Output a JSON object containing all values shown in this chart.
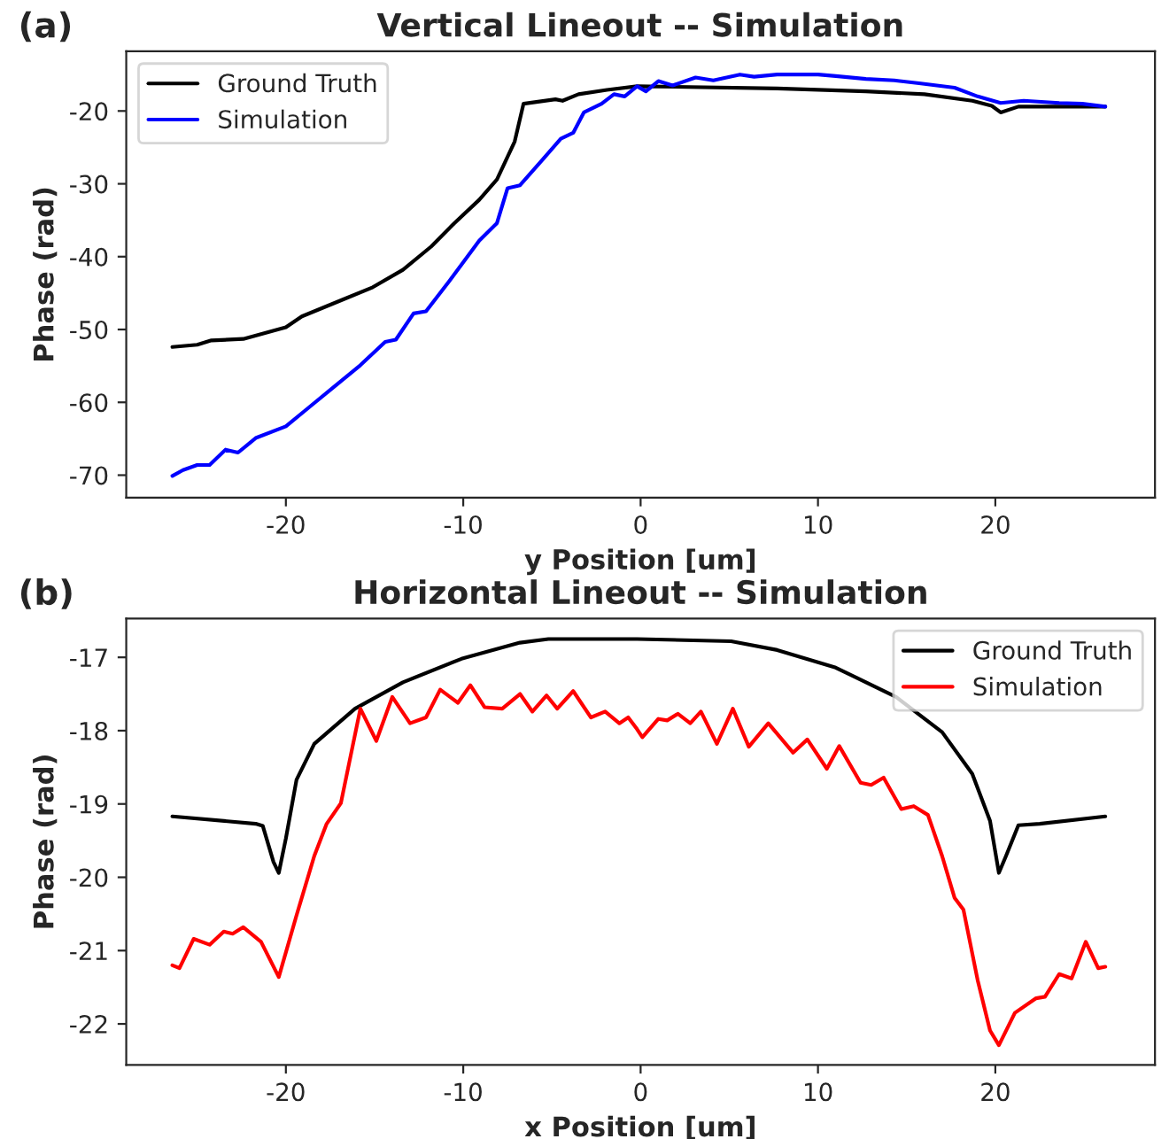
{
  "chart_data": [
    {
      "type": "line",
      "title": "Vertical Lineout -- Simulation",
      "xlabel": "y Position [um]",
      "ylabel": "Phase (rad)",
      "annotations": [
        "(a)"
      ],
      "legend": "top left",
      "grid": false,
      "xlim": [
        -29,
        29
      ],
      "xticks": [
        -20,
        -10,
        0,
        10,
        20
      ],
      "ylim": [
        -73.1,
        -11.8
      ],
      "yticks": [
        -70,
        -60,
        -50,
        -40,
        -30,
        -20
      ],
      "series": [
        {
          "name": "Ground Truth",
          "color": "#000000",
          "x": [
            -26.4,
            -25.0,
            -24.2,
            -22.4,
            -20.0,
            -19.1,
            -16.7,
            -15.1,
            -13.4,
            -11.8,
            -10.5,
            -9.1,
            -8.1,
            -7.1,
            -6.6,
            -4.8,
            -4.4,
            -3.5,
            -1.9,
            -0.2,
            7.7,
            12.7,
            16.0,
            18.7,
            19.8,
            20.3,
            21.3,
            26.2
          ],
          "values": [
            -52.4,
            -52.1,
            -51.5,
            -51.3,
            -49.7,
            -48.2,
            -45.8,
            -44.2,
            -41.8,
            -38.6,
            -35.4,
            -32.2,
            -29.4,
            -24.2,
            -19.0,
            -18.4,
            -18.6,
            -17.7,
            -17.1,
            -16.6,
            -16.9,
            -17.3,
            -17.7,
            -18.6,
            -19.3,
            -20.2,
            -19.4,
            -19.4
          ]
        },
        {
          "name": "Simulation",
          "color": "#0000ff",
          "x": [
            -26.4,
            -25.8,
            -25.0,
            -24.3,
            -23.4,
            -22.7,
            -21.7,
            -20.0,
            -18.7,
            -17.4,
            -15.8,
            -14.4,
            -13.8,
            -12.8,
            -12.1,
            -10.8,
            -9.1,
            -8.1,
            -7.5,
            -6.8,
            -5.5,
            -4.5,
            -3.8,
            -3.2,
            -2.2,
            -1.5,
            -0.9,
            -0.2,
            0.3,
            1.0,
            1.8,
            3.1,
            4.1,
            5.6,
            6.4,
            7.7,
            10.0,
            11.0,
            12.7,
            14.3,
            15.7,
            17.7,
            19.0,
            20.3,
            21.6,
            23.6,
            24.9,
            26.2
          ],
          "values": [
            -70.1,
            -69.3,
            -68.6,
            -68.6,
            -66.5,
            -66.9,
            -64.9,
            -63.3,
            -60.7,
            -58.1,
            -54.9,
            -51.7,
            -51.4,
            -47.8,
            -47.5,
            -43.4,
            -37.8,
            -35.4,
            -30.6,
            -30.2,
            -26.6,
            -23.8,
            -23.0,
            -20.2,
            -19.0,
            -17.7,
            -18.0,
            -16.6,
            -17.3,
            -15.9,
            -16.5,
            -15.4,
            -15.8,
            -15.0,
            -15.3,
            -15.0,
            -15.0,
            -15.2,
            -15.6,
            -15.8,
            -16.2,
            -16.8,
            -18.0,
            -18.9,
            -18.6,
            -18.9,
            -19.0,
            -19.4
          ]
        }
      ]
    },
    {
      "type": "line",
      "title": "Horizontal Lineout -- Simulation",
      "xlabel": "x Position [um]",
      "ylabel": "Phase (rad)",
      "annotations": [
        "(b)"
      ],
      "legend": "top right",
      "grid": false,
      "xlim": [
        -29,
        29
      ],
      "xticks": [
        -20,
        -10,
        0,
        10,
        20
      ],
      "ylim": [
        -22.56,
        -16.47
      ],
      "yticks": [
        -22,
        -21,
        -20,
        -19,
        -18,
        -17
      ],
      "series": [
        {
          "name": "Ground Truth",
          "color": "#000000",
          "x": [
            -26.4,
            -21.7,
            -21.3,
            -20.7,
            -20.4,
            -20.0,
            -19.4,
            -18.4,
            -16.1,
            -13.4,
            -10.1,
            -6.8,
            -5.2,
            -0.2,
            5.1,
            7.7,
            11.0,
            14.4,
            17.0,
            18.7,
            19.7,
            20.2,
            20.6,
            21.3,
            22.5,
            26.2
          ],
          "values": [
            -19.17,
            -19.27,
            -19.3,
            -19.79,
            -19.94,
            -19.47,
            -18.67,
            -18.18,
            -17.7,
            -17.34,
            -17.02,
            -16.8,
            -16.75,
            -16.75,
            -16.78,
            -16.9,
            -17.14,
            -17.54,
            -18.02,
            -18.59,
            -19.23,
            -19.94,
            -19.71,
            -19.29,
            -19.27,
            -19.17
          ]
        },
        {
          "name": "Simulation",
          "color": "#ff0000",
          "x": [
            -26.4,
            -26.0,
            -25.2,
            -24.3,
            -23.5,
            -23.0,
            -22.4,
            -21.4,
            -20.4,
            -19.4,
            -18.4,
            -17.7,
            -16.9,
            -15.8,
            -14.9,
            -14.0,
            -13.0,
            -12.1,
            -11.3,
            -10.3,
            -9.6,
            -8.8,
            -7.8,
            -6.8,
            -6.1,
            -5.3,
            -4.7,
            -3.8,
            -2.8,
            -2.0,
            -1.2,
            -0.7,
            -0.2,
            0.1,
            1.0,
            1.5,
            2.1,
            2.8,
            3.4,
            4.3,
            5.2,
            6.1,
            7.2,
            8.6,
            9.4,
            10.5,
            11.2,
            12.4,
            13.0,
            13.7,
            14.7,
            15.4,
            16.2,
            17.0,
            17.7,
            18.2,
            19.0,
            19.7,
            20.2,
            21.1,
            22.3,
            22.8,
            23.6,
            24.3,
            25.1,
            25.8,
            26.2
          ],
          "values": [
            -21.2,
            -21.24,
            -20.84,
            -20.92,
            -20.74,
            -20.77,
            -20.68,
            -20.88,
            -21.36,
            -20.52,
            -19.71,
            -19.27,
            -18.99,
            -17.7,
            -18.14,
            -17.54,
            -17.9,
            -17.82,
            -17.44,
            -17.62,
            -17.38,
            -17.68,
            -17.7,
            -17.5,
            -17.74,
            -17.52,
            -17.7,
            -17.46,
            -17.82,
            -17.74,
            -17.9,
            -17.82,
            -17.98,
            -18.09,
            -17.84,
            -17.86,
            -17.77,
            -17.9,
            -17.74,
            -18.18,
            -17.7,
            -18.22,
            -17.9,
            -18.3,
            -18.12,
            -18.52,
            -18.21,
            -18.71,
            -18.74,
            -18.64,
            -19.07,
            -19.03,
            -19.15,
            -19.71,
            -20.28,
            -20.44,
            -21.4,
            -22.09,
            -22.29,
            -21.85,
            -21.65,
            -21.63,
            -21.32,
            -21.38,
            -20.88,
            -21.24,
            -21.22
          ]
        }
      ]
    }
  ]
}
